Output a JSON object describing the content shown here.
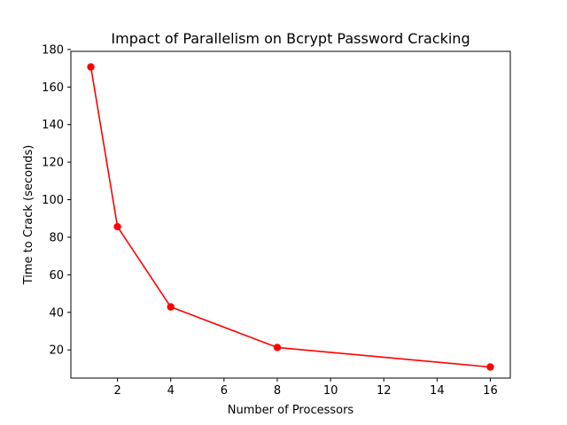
{
  "chart_data": {
    "type": "line",
    "title": "Impact of Parallelism on Bcrypt Password Cracking",
    "xlabel": "Number of Processors",
    "ylabel": "Time to Crack (seconds)",
    "x": [
      1,
      2,
      4,
      8,
      16
    ],
    "series": [
      {
        "values": [
          170.7,
          85.6,
          42.9,
          21.3,
          10.9
        ],
        "color": "#ff0000",
        "marker": "circle"
      }
    ],
    "xlim": [
      0.25,
      16.75
    ],
    "ylim": [
      5.0,
      179.0
    ],
    "xticks": [
      2,
      4,
      6,
      8,
      10,
      12,
      14,
      16
    ],
    "yticks": [
      20,
      40,
      60,
      80,
      100,
      120,
      140,
      160,
      180
    ],
    "grid": false,
    "legend": "none"
  }
}
